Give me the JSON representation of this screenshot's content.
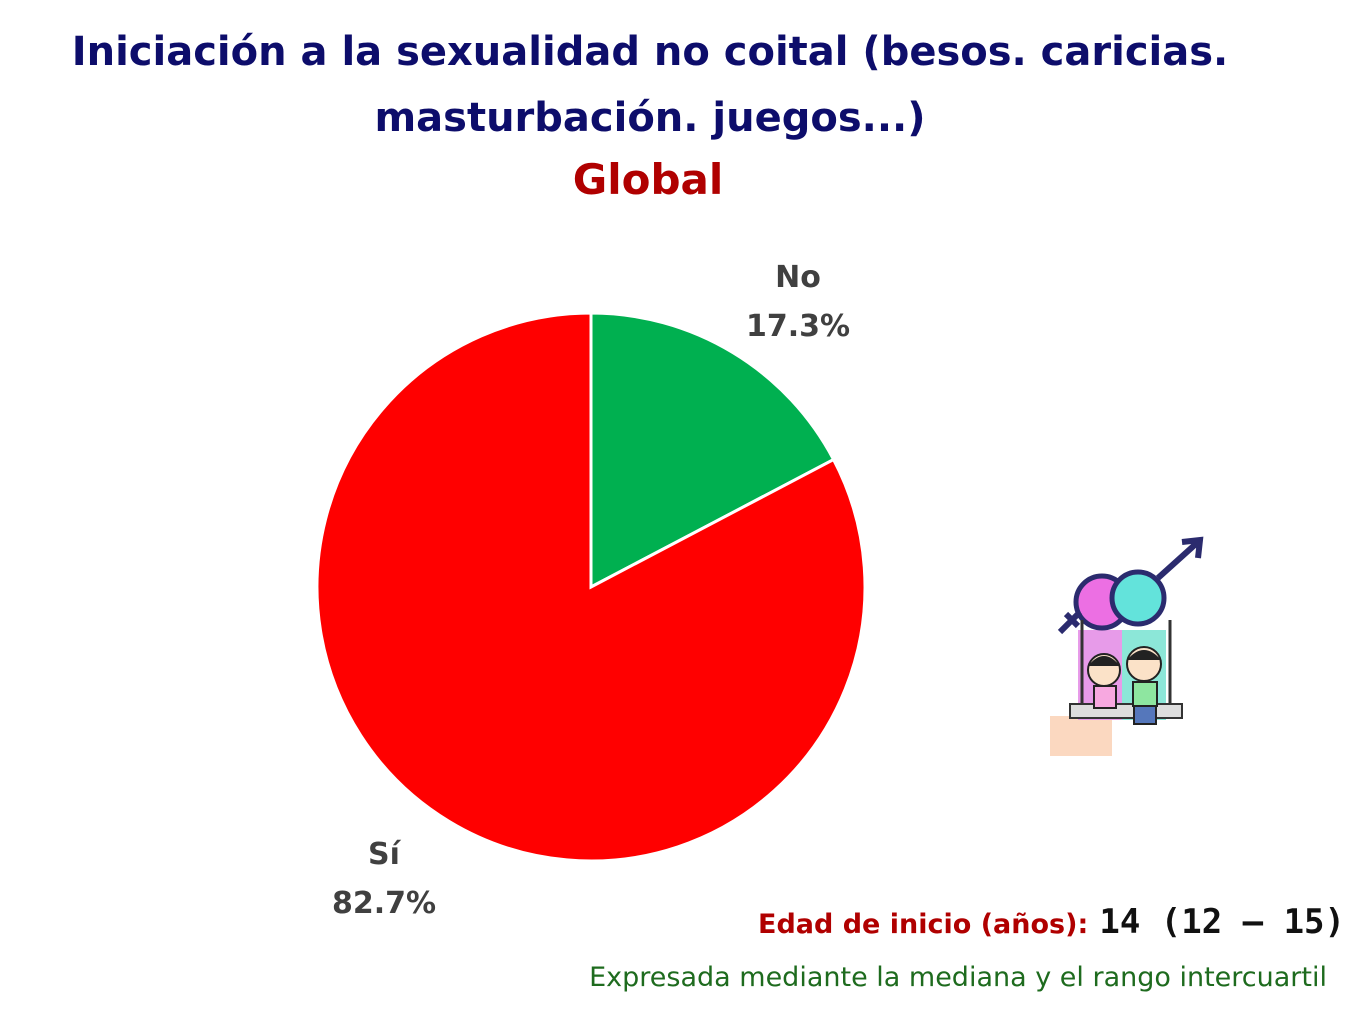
{
  "title_line1": "Iniciación a la sexualidad no coital (besos. caricias.",
  "title_line2": "masturbación. juegos...)",
  "subtitle": "Global",
  "chart_data": {
    "type": "pie",
    "title": "Iniciación a la sexualidad no coital (besos. caricias. masturbación. juegos...)",
    "subtitle": "Global",
    "slices": [
      {
        "label": "No",
        "value": 17.3,
        "value_label": "17.3%",
        "color": "#00b050"
      },
      {
        "label": "Sí",
        "value": 82.7,
        "value_label": "82.7%",
        "color": "#ff0000"
      }
    ],
    "start": "12 o'clock",
    "direction": "clockwise"
  },
  "age": {
    "label": "Edad de inicio (años):",
    "value": "14 (12 – 15)"
  },
  "note": "Expresada mediante la mediana y el rango intercuartil",
  "illustration_icon": "gender-symbols-children-on-swing-icon",
  "colors": {
    "title": "#0d0d6b",
    "subtitle": "#b00000",
    "no_slice": "#00b050",
    "si_slice": "#ff0000",
    "note": "#1e6b1e"
  }
}
